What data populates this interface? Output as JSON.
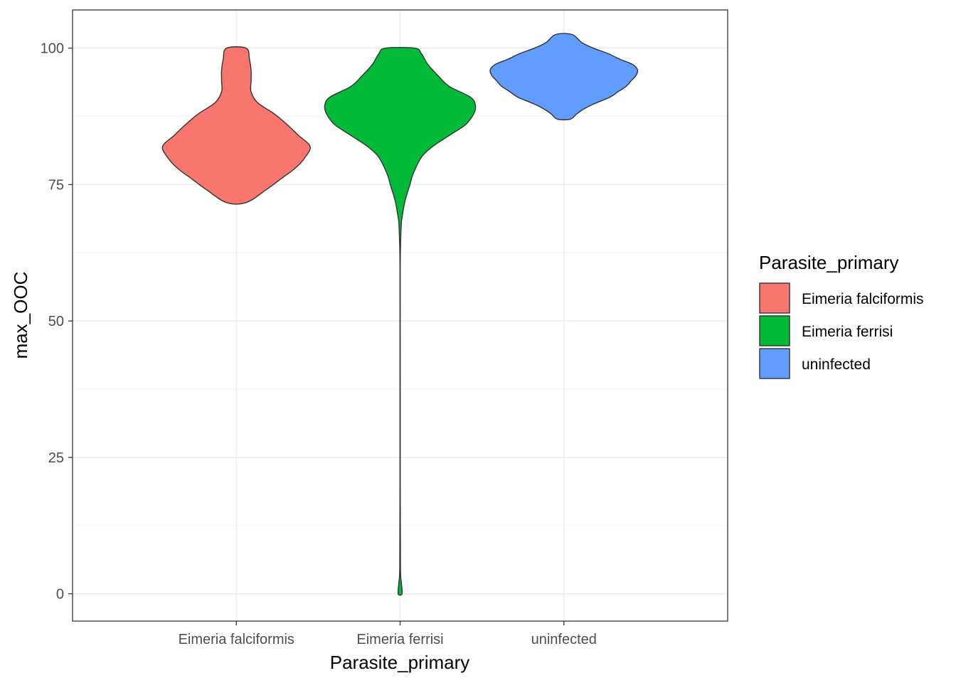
{
  "chart_data": {
    "type": "violin",
    "xlabel": "Parasite_primary",
    "ylabel": "max_OOC",
    "ylim": [
      -5,
      107
    ],
    "y_ticks": [
      0,
      25,
      50,
      75,
      100
    ],
    "y_tick_labels": [
      "0",
      "25",
      "50",
      "75",
      "100"
    ],
    "categories": [
      "Eimeria falciformis",
      "Eimeria ferrisi",
      "uninfected"
    ],
    "grid": true,
    "legend": {
      "title": "Parasite_primary",
      "position": "right",
      "entries": [
        "Eimeria falciformis",
        "Eimeria ferrisi",
        "uninfected"
      ]
    },
    "series": [
      {
        "name": "Eimeria falciformis",
        "color": "#F8766D",
        "range": [
          71.7,
          100
        ],
        "density_profile": [
          [
            71.7,
            0.06
          ],
          [
            74,
            0.18
          ],
          [
            76,
            0.27
          ],
          [
            78,
            0.36
          ],
          [
            80,
            0.42
          ],
          [
            82,
            0.45
          ],
          [
            84,
            0.38
          ],
          [
            86,
            0.31
          ],
          [
            88,
            0.23
          ],
          [
            90,
            0.13
          ],
          [
            92,
            0.09
          ],
          [
            94,
            0.09
          ],
          [
            96,
            0.09
          ],
          [
            98,
            0.08
          ],
          [
            100,
            0.06
          ]
        ]
      },
      {
        "name": "Eimeria ferrisi",
        "color": "#00BA38",
        "range": [
          0,
          100
        ],
        "density_profile": [
          [
            0,
            0.012
          ],
          [
            2,
            0.008
          ],
          [
            5,
            0.002
          ],
          [
            20,
            0.001
          ],
          [
            40,
            0.001
          ],
          [
            60,
            0.001
          ],
          [
            67,
            0.006
          ],
          [
            69,
            0.012
          ],
          [
            72,
            0.03
          ],
          [
            75,
            0.06
          ],
          [
            77,
            0.08
          ],
          [
            80,
            0.13
          ],
          [
            82,
            0.2
          ],
          [
            84,
            0.3
          ],
          [
            86,
            0.4
          ],
          [
            88,
            0.45
          ],
          [
            89.5,
            0.46
          ],
          [
            91,
            0.43
          ],
          [
            93,
            0.3
          ],
          [
            95,
            0.23
          ],
          [
            97,
            0.17
          ],
          [
            99,
            0.13
          ],
          [
            100,
            0.09
          ]
        ]
      },
      {
        "name": "uninfected",
        "color": "#619CFF",
        "range": [
          87,
          102.5
        ],
        "density_profile": [
          [
            87,
            0.04
          ],
          [
            88,
            0.08
          ],
          [
            89,
            0.13
          ],
          [
            90,
            0.2
          ],
          [
            91,
            0.28
          ],
          [
            92,
            0.33
          ],
          [
            93,
            0.38
          ],
          [
            94,
            0.41
          ],
          [
            95,
            0.44
          ],
          [
            96,
            0.45
          ],
          [
            97,
            0.42
          ],
          [
            98,
            0.34
          ],
          [
            99,
            0.27
          ],
          [
            100,
            0.18
          ],
          [
            101,
            0.11
          ],
          [
            102.5,
            0.05
          ]
        ]
      }
    ]
  }
}
